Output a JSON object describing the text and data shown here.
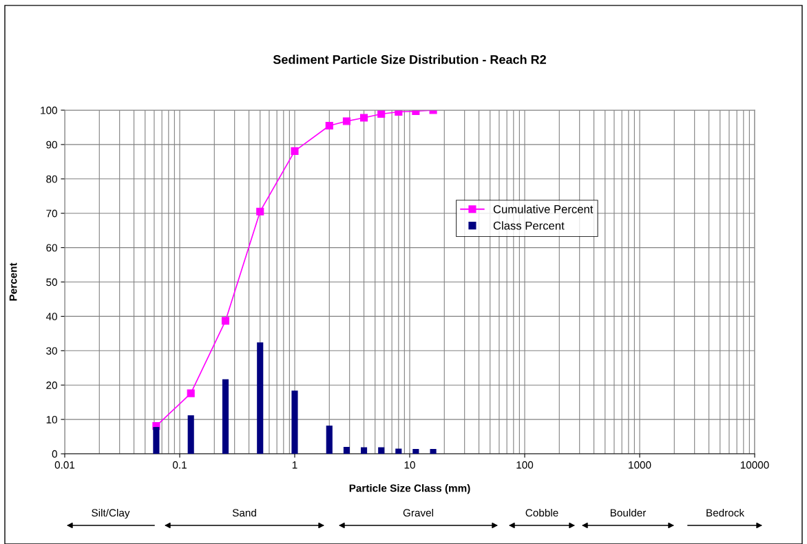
{
  "chart_data": {
    "type": "line",
    "title": "Sediment Particle Size Distribution - Reach R2",
    "xlabel": "Particle Size Class (mm)",
    "ylabel": "Percent",
    "log": "x",
    "xlim": [
      0.01,
      10000
    ],
    "xticks": [
      {
        "value": 0.01,
        "label": "0.01"
      },
      {
        "value": 0.1,
        "label": "0.1"
      },
      1,
      10,
      100,
      1000,
      10000
    ],
    "ylim": [
      0,
      100
    ],
    "yticks": [
      0,
      10,
      20,
      30,
      40,
      50,
      60,
      70,
      80,
      90,
      100
    ],
    "grid": true,
    "legend": "upper right",
    "marker": "square",
    "line_style": "solid",
    "series": [
      {
        "name": "Cumulative Percent",
        "color": "#ff00ff",
        "x": [
          0.0625,
          0.125,
          0.25,
          0.5,
          1,
          2,
          2.83,
          4,
          5.66,
          8,
          11.3,
          16
        ],
        "values": [
          8.1,
          17.6,
          38.7,
          70.5,
          88.1,
          95.5,
          96.8,
          97.8,
          98.9,
          99.5,
          99.7,
          100
        ]
      },
      {
        "name": "Class Percent",
        "type": "bar",
        "color": "#000080",
        "x": [
          0.0625,
          0.125,
          0.25,
          0.5,
          1,
          2,
          2.83,
          4,
          5.66,
          8,
          11.3,
          16
        ],
        "values": [
          7.8,
          11.2,
          21.7,
          32.4,
          18.4,
          8.2,
          2.0,
          1.9,
          1.9,
          1.5,
          1.4,
          1.4
        ]
      }
    ],
    "annotations": [
      "Silt/Clay",
      "Sand",
      "Gravel",
      "Cobble",
      "Boulder",
      "Bedrock"
    ]
  }
}
